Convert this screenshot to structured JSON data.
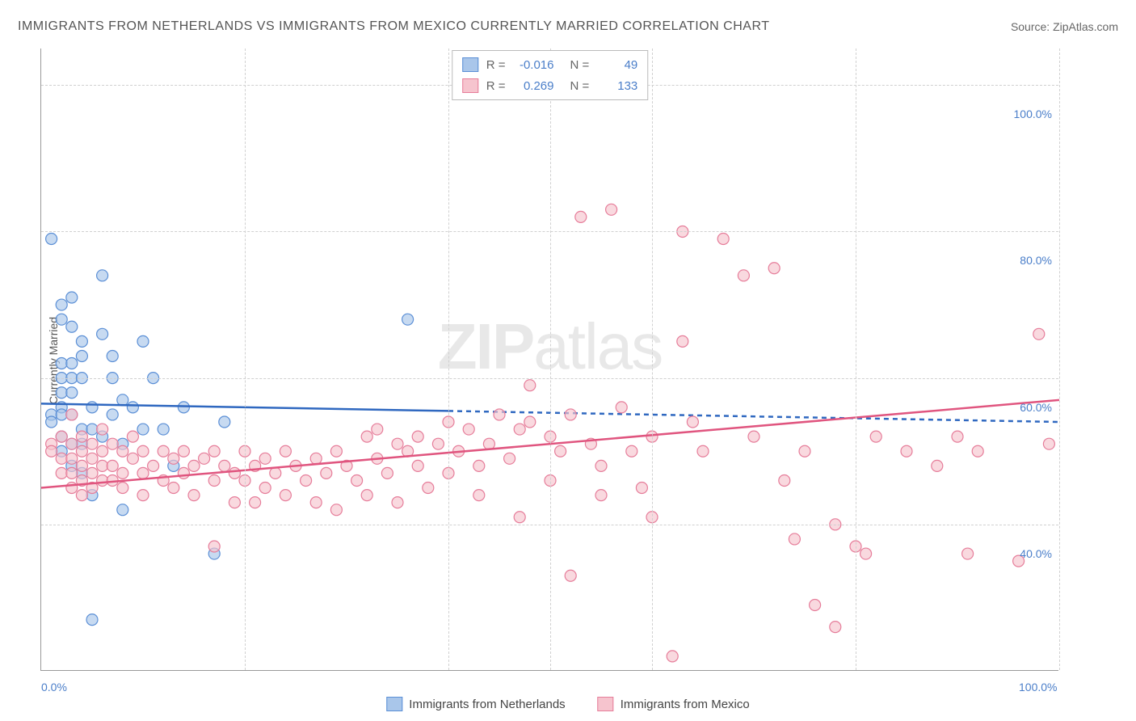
{
  "header": {
    "title": "IMMIGRANTS FROM NETHERLANDS VS IMMIGRANTS FROM MEXICO CURRENTLY MARRIED CORRELATION CHART",
    "source": "Source: ZipAtlas.com"
  },
  "watermark": {
    "prefix": "ZIP",
    "suffix": "atlas"
  },
  "chart": {
    "type": "scatter",
    "y_axis_label": "Currently Married",
    "xlim": [
      0,
      100
    ],
    "ylim": [
      20,
      105
    ],
    "x_ticks": [
      {
        "value": 0,
        "label": "0.0%"
      },
      {
        "value": 100,
        "label": "100.0%"
      }
    ],
    "y_ticks": [
      {
        "value": 40,
        "label": "40.0%"
      },
      {
        "value": 60,
        "label": "60.0%"
      },
      {
        "value": 80,
        "label": "80.0%"
      },
      {
        "value": 100,
        "label": "100.0%"
      }
    ],
    "vgrid_values": [
      20,
      40,
      50,
      60,
      80,
      100
    ],
    "background_color": "#ffffff",
    "grid_color": "#d0d0d0",
    "marker_radius": 7,
    "marker_stroke_width": 1.2,
    "trend_line_width": 2.5,
    "trend_dash": "6,5"
  },
  "legend_box": {
    "r_label": "R =",
    "n_label": "N =",
    "rows": [
      {
        "r": "-0.016",
        "n": "49"
      },
      {
        "r": "0.269",
        "n": "133"
      }
    ]
  },
  "bottom_legend": {
    "items": [
      {
        "label": "Immigrants from Netherlands"
      },
      {
        "label": "Immigrants from Mexico"
      }
    ]
  },
  "series": [
    {
      "id": "netherlands",
      "fill_color": "#a9c6ea",
      "stroke_color": "#5b8fd6",
      "line_color": "#2f68c0",
      "trend": {
        "x1": 0,
        "y1": 56.5,
        "x2": 100,
        "y2": 54.0,
        "solid_until_x": 40
      },
      "points": [
        [
          1,
          79
        ],
        [
          1,
          55
        ],
        [
          1,
          54
        ],
        [
          2,
          70
        ],
        [
          2,
          68
        ],
        [
          2,
          62
        ],
        [
          2,
          60
        ],
        [
          2,
          58
        ],
        [
          2,
          56
        ],
        [
          2,
          55
        ],
        [
          2,
          52
        ],
        [
          2,
          50
        ],
        [
          3,
          71
        ],
        [
          3,
          67
        ],
        [
          3,
          62
        ],
        [
          3,
          60
        ],
        [
          3,
          58
        ],
        [
          3,
          55
        ],
        [
          3,
          51
        ],
        [
          3,
          48
        ],
        [
          4,
          65
        ],
        [
          4,
          63
        ],
        [
          4,
          60
        ],
        [
          4,
          53
        ],
        [
          4,
          51
        ],
        [
          4,
          47
        ],
        [
          5,
          56
        ],
        [
          5,
          53
        ],
        [
          5,
          44
        ],
        [
          5,
          27
        ],
        [
          6,
          74
        ],
        [
          6,
          66
        ],
        [
          6,
          52
        ],
        [
          7,
          63
        ],
        [
          7,
          60
        ],
        [
          7,
          55
        ],
        [
          8,
          57
        ],
        [
          8,
          51
        ],
        [
          8,
          42
        ],
        [
          9,
          56
        ],
        [
          10,
          65
        ],
        [
          10,
          53
        ],
        [
          11,
          60
        ],
        [
          12,
          53
        ],
        [
          13,
          48
        ],
        [
          14,
          56
        ],
        [
          17,
          36
        ],
        [
          18,
          54
        ],
        [
          36,
          68
        ]
      ]
    },
    {
      "id": "mexico",
      "fill_color": "#f6c4ce",
      "stroke_color": "#e67d9a",
      "line_color": "#e0557f",
      "trend": {
        "x1": 0,
        "y1": 45.0,
        "x2": 100,
        "y2": 57.0,
        "solid_until_x": 100
      },
      "points": [
        [
          1,
          51
        ],
        [
          1,
          50
        ],
        [
          2,
          52
        ],
        [
          2,
          49
        ],
        [
          2,
          47
        ],
        [
          3,
          55
        ],
        [
          3,
          51
        ],
        [
          3,
          49
        ],
        [
          3,
          47
        ],
        [
          3,
          45
        ],
        [
          4,
          52
        ],
        [
          4,
          50
        ],
        [
          4,
          48
        ],
        [
          4,
          46
        ],
        [
          4,
          44
        ],
        [
          5,
          51
        ],
        [
          5,
          49
        ],
        [
          5,
          47
        ],
        [
          5,
          45
        ],
        [
          6,
          53
        ],
        [
          6,
          50
        ],
        [
          6,
          48
        ],
        [
          6,
          46
        ],
        [
          7,
          51
        ],
        [
          7,
          48
        ],
        [
          7,
          46
        ],
        [
          8,
          50
        ],
        [
          8,
          47
        ],
        [
          8,
          45
        ],
        [
          9,
          52
        ],
        [
          9,
          49
        ],
        [
          10,
          50
        ],
        [
          10,
          47
        ],
        [
          10,
          44
        ],
        [
          11,
          48
        ],
        [
          12,
          50
        ],
        [
          12,
          46
        ],
        [
          13,
          49
        ],
        [
          13,
          45
        ],
        [
          14,
          50
        ],
        [
          14,
          47
        ],
        [
          15,
          48
        ],
        [
          15,
          44
        ],
        [
          16,
          49
        ],
        [
          17,
          50
        ],
        [
          17,
          46
        ],
        [
          17,
          37
        ],
        [
          18,
          48
        ],
        [
          19,
          47
        ],
        [
          19,
          43
        ],
        [
          20,
          50
        ],
        [
          20,
          46
        ],
        [
          21,
          48
        ],
        [
          21,
          43
        ],
        [
          22,
          49
        ],
        [
          22,
          45
        ],
        [
          23,
          47
        ],
        [
          24,
          50
        ],
        [
          24,
          44
        ],
        [
          25,
          48
        ],
        [
          26,
          46
        ],
        [
          27,
          49
        ],
        [
          27,
          43
        ],
        [
          28,
          47
        ],
        [
          29,
          50
        ],
        [
          29,
          42
        ],
        [
          30,
          48
        ],
        [
          31,
          46
        ],
        [
          32,
          52
        ],
        [
          32,
          44
        ],
        [
          33,
          53
        ],
        [
          33,
          49
        ],
        [
          34,
          47
        ],
        [
          35,
          51
        ],
        [
          35,
          43
        ],
        [
          36,
          50
        ],
        [
          37,
          48
        ],
        [
          37,
          52
        ],
        [
          38,
          45
        ],
        [
          39,
          51
        ],
        [
          40,
          54
        ],
        [
          40,
          47
        ],
        [
          41,
          50
        ],
        [
          42,
          53
        ],
        [
          43,
          48
        ],
        [
          43,
          44
        ],
        [
          44,
          51
        ],
        [
          45,
          55
        ],
        [
          46,
          49
        ],
        [
          47,
          53
        ],
        [
          47,
          41
        ],
        [
          48,
          54
        ],
        [
          48,
          59
        ],
        [
          50,
          52
        ],
        [
          50,
          46
        ],
        [
          51,
          50
        ],
        [
          52,
          55
        ],
        [
          52,
          33
        ],
        [
          53,
          82
        ],
        [
          54,
          51
        ],
        [
          55,
          48
        ],
        [
          55,
          44
        ],
        [
          56,
          83
        ],
        [
          57,
          56
        ],
        [
          58,
          50
        ],
        [
          59,
          45
        ],
        [
          60,
          52
        ],
        [
          60,
          41
        ],
        [
          63,
          80
        ],
        [
          63,
          65
        ],
        [
          64,
          54
        ],
        [
          65,
          50
        ],
        [
          67,
          79
        ],
        [
          69,
          74
        ],
        [
          70,
          52
        ],
        [
          72,
          75
        ],
        [
          73,
          46
        ],
        [
          74,
          38
        ],
        [
          75,
          50
        ],
        [
          76,
          29
        ],
        [
          78,
          40
        ],
        [
          78,
          26
        ],
        [
          80,
          37
        ],
        [
          81,
          36
        ],
        [
          82,
          52
        ],
        [
          85,
          50
        ],
        [
          88,
          48
        ],
        [
          90,
          52
        ],
        [
          91,
          36
        ],
        [
          92,
          50
        ],
        [
          96,
          35
        ],
        [
          98,
          66
        ],
        [
          99,
          51
        ],
        [
          62,
          22
        ]
      ]
    }
  ]
}
